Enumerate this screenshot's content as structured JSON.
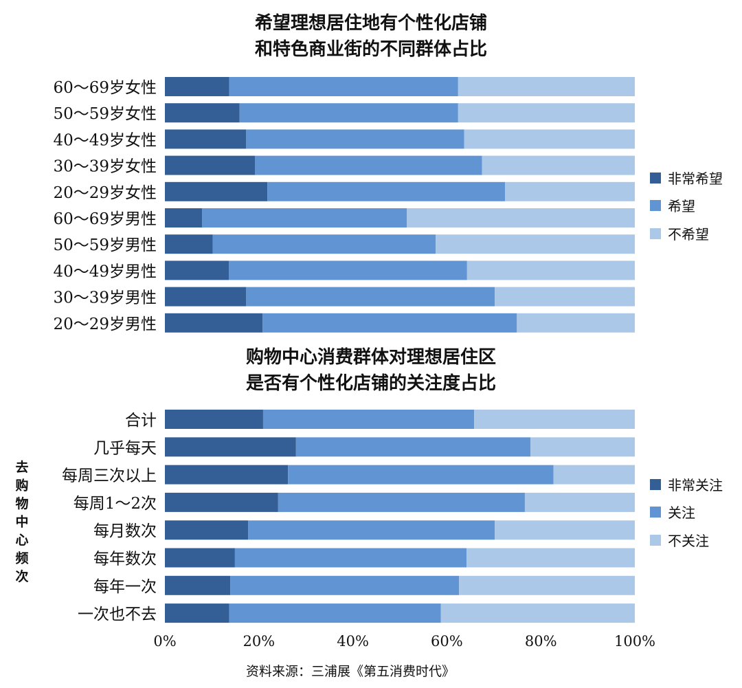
{
  "colors": {
    "dark": "#345f96",
    "mid": "#6194d3",
    "light": "#abc8e9"
  },
  "source": "资料来源：三浦展《第五消费时代》",
  "chart_data": [
    {
      "type": "bar",
      "orientation": "horizontal",
      "stacked": "percent",
      "title": [
        "希望理想居住地有个性化店铺",
        "和特色商业街的不同群体占比"
      ],
      "legend_position": "right",
      "categories": [
        "60～69岁女性",
        "50～59岁女性",
        "40～49岁女性",
        "30～39岁女性",
        "20～29岁女性",
        "60～69岁男性",
        "50～59岁男性",
        "40～49岁男性",
        "30～39岁男性",
        "20～29岁男性"
      ],
      "series": [
        {
          "name": "非常希望",
          "values": [
            13.7,
            15.9,
            17.3,
            19.2,
            21.8,
            7.9,
            10.2,
            13.6,
            17.3,
            20.8
          ]
        },
        {
          "name": "希望",
          "values": [
            48.7,
            46.5,
            46.4,
            48.3,
            50.6,
            43.6,
            47.4,
            50.7,
            52.9,
            54.1
          ]
        },
        {
          "name": "不希望",
          "values": [
            37.6,
            37.6,
            36.3,
            32.5,
            27.6,
            48.5,
            42.4,
            35.7,
            29.8,
            25.1
          ]
        }
      ]
    },
    {
      "type": "bar",
      "orientation": "horizontal",
      "stacked": "percent",
      "title": [
        "购物中心消费群体对理想居住区",
        "是否有个性化店铺的关注度占比"
      ],
      "ylabel": "去购物中心频次",
      "legend_position": "right",
      "categories": [
        "合计",
        "几乎每天",
        "每周三次以上",
        "每周1～2次",
        "每月数次",
        "每年数次",
        "每年一次",
        "一次也不去"
      ],
      "series": [
        {
          "name": "非常关注",
          "values": [
            20.9,
            27.9,
            26.2,
            24.1,
            17.7,
            14.9,
            13.9,
            13.7
          ]
        },
        {
          "name": "关注",
          "values": [
            44.9,
            49.9,
            56.5,
            52.5,
            52.5,
            49.3,
            48.7,
            45.0
          ]
        },
        {
          "name": "不关注",
          "values": [
            34.2,
            22.2,
            17.3,
            23.4,
            29.8,
            35.8,
            37.4,
            41.3
          ]
        }
      ],
      "xlim": [
        0,
        100
      ],
      "xticks": [
        "0%",
        "20%",
        "40%",
        "60%",
        "80%",
        "100%"
      ]
    }
  ]
}
